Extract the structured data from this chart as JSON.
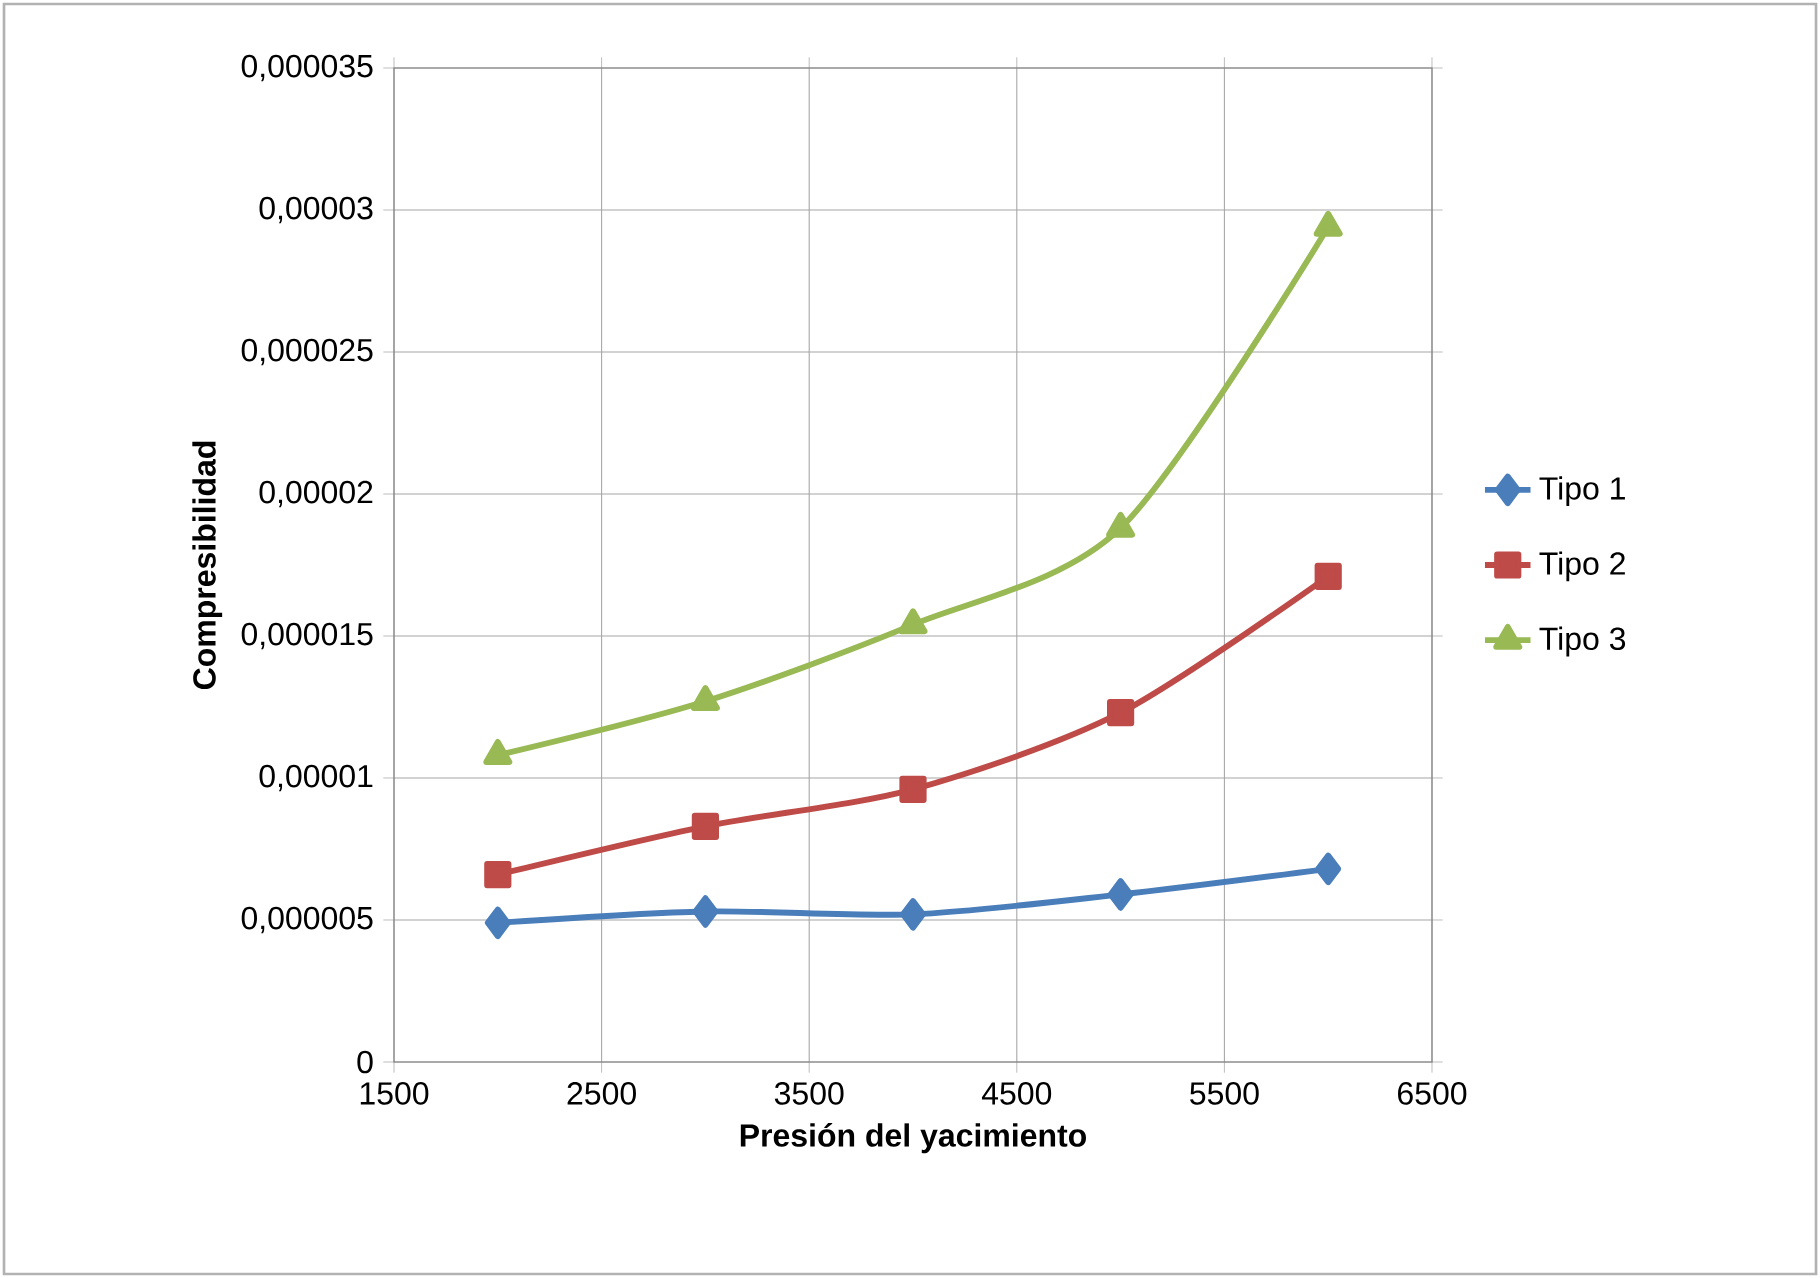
{
  "chart_data": {
    "type": "line",
    "xlabel": "Presión del yacimiento",
    "ylabel": "Compresibilidad",
    "x": [
      2000,
      3000,
      4000,
      5000,
      6000
    ],
    "series": [
      {
        "name": "Tipo 1",
        "color": "#4a7ebb",
        "marker": "diamond",
        "values": [
          4.9e-06,
          5.3e-06,
          5.2e-06,
          5.9e-06,
          6.8e-06
        ]
      },
      {
        "name": "Tipo 2",
        "color": "#be4b48",
        "marker": "square",
        "values": [
          6.6e-06,
          8.3e-06,
          9.6e-06,
          1.23e-05,
          1.71e-05
        ]
      },
      {
        "name": "Tipo 3",
        "color": "#98b954",
        "marker": "triangle",
        "values": [
          1.08e-05,
          1.27e-05,
          1.54e-05,
          1.88e-05,
          2.94e-05
        ]
      }
    ],
    "xlim": [
      1500,
      6500
    ],
    "xticks": [
      1500,
      2500,
      3500,
      4500,
      5500,
      6500
    ],
    "ylim": [
      0,
      3.5e-05
    ],
    "yticks": [
      0,
      {
        "value": 5e-06,
        "label": "0,000005"
      },
      {
        "value": 1e-05,
        "label": "0,00001"
      },
      {
        "value": 1.5e-05,
        "label": "0,000015"
      },
      {
        "value": 2e-05,
        "label": "0,00002"
      },
      {
        "value": 2.5e-05,
        "label": "0,000025"
      },
      {
        "value": 3e-05,
        "label": "0,00003"
      },
      {
        "value": 3.5e-05,
        "label": "0,000035"
      }
    ],
    "grid": true,
    "legend": "right",
    "line_style": "solid"
  }
}
